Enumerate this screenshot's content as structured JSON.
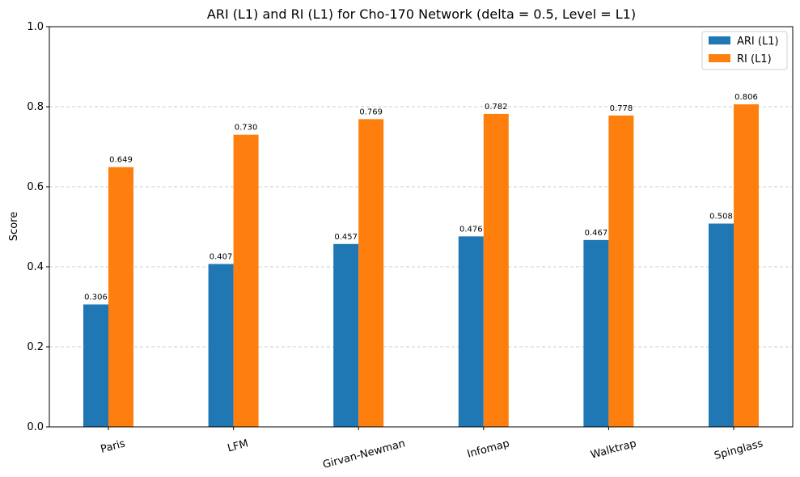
{
  "chart_data": {
    "type": "bar",
    "title": "ARI (L1) and RI (L1) for Cho-170 Network (delta = 0.5, Level = L1)",
    "xlabel": "",
    "ylabel": "Score",
    "ylim": [
      0,
      1.0
    ],
    "yticks": [
      "0.0",
      "0.2",
      "0.4",
      "0.6",
      "0.8",
      "1.0"
    ],
    "grid": "horizontal dashed",
    "legend_position": "top-right",
    "categories": [
      "Paris",
      "LFM",
      "Girvan-Newman",
      "Infomap",
      "Walktrap",
      "Spinglass"
    ],
    "series": [
      {
        "name": "ARI (L1)",
        "color": "#1f77b4",
        "values": [
          0.306,
          0.407,
          0.457,
          0.476,
          0.467,
          0.508
        ],
        "labels": [
          "0.306",
          "0.407",
          "0.457",
          "0.476",
          "0.467",
          "0.508"
        ]
      },
      {
        "name": "RI (L1)",
        "color": "#ff7f0e",
        "values": [
          0.649,
          0.73,
          0.769,
          0.782,
          0.778,
          0.806
        ],
        "labels": [
          "0.649",
          "0.730",
          "0.769",
          "0.782",
          "0.778",
          "0.806"
        ]
      }
    ]
  }
}
